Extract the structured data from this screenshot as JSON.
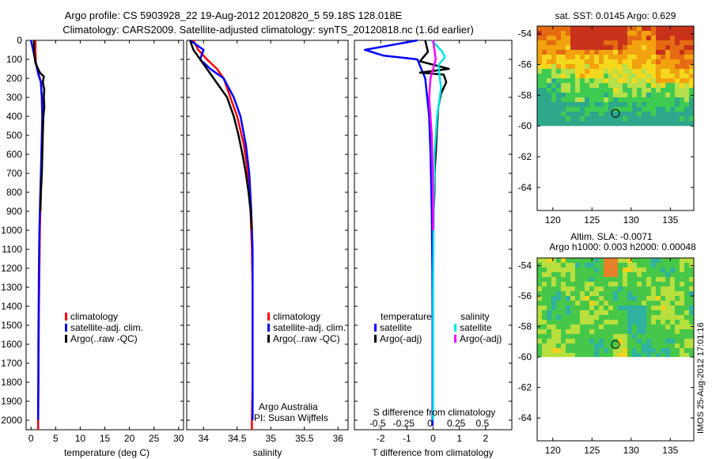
{
  "title": {
    "line1": "Argo profile: CS 5903928_22 19-Aug-2012 20120820_5 59.18S 128.018E",
    "line2": "Climatology: CARS2009. Satellite-adjusted climatology: synTS_20120818.nc (1.6d earlier)"
  },
  "colors": {
    "climatology": "#ff0000",
    "satellite": "#0000ff",
    "argo": "#000000",
    "sal_satellite": "#00e5e5",
    "sal_argo": "#ff00ff"
  },
  "chart_data": [
    {
      "type": "line",
      "name": "temperature_profile",
      "xlabel": "temperature (deg C)",
      "xlim": [
        -1,
        31
      ],
      "ylim": [
        2050,
        0
      ],
      "xticks": [
        0,
        5,
        10,
        15,
        20,
        25,
        30
      ],
      "yticks": [
        0,
        100,
        200,
        300,
        400,
        500,
        600,
        700,
        800,
        900,
        1000,
        1100,
        1200,
        1300,
        1400,
        1500,
        1600,
        1700,
        1800,
        1900,
        2000
      ],
      "legend": [
        "climatology",
        "satellite-adj. clim.",
        "Argo(..raw -QC)"
      ],
      "series": [
        {
          "name": "climatology",
          "color": "#ff0000",
          "x": [
            0.9,
            0.9,
            1.0,
            1.6,
            2.0,
            2.2,
            2.3,
            2.3,
            2.2,
            2.1,
            2.0,
            1.9,
            1.8,
            1.7,
            1.6,
            1.55,
            1.5,
            1.5,
            1.45,
            1.45
          ],
          "y": [
            0,
            60,
            120,
            180,
            220,
            300,
            400,
            500,
            600,
            700,
            800,
            900,
            1000,
            1200,
            1400,
            1600,
            1800,
            1900,
            2000,
            2050
          ]
        },
        {
          "name": "satellite-adj. clim.",
          "color": "#0000ff",
          "x": [
            0.0,
            0.5,
            1.0,
            1.5,
            2.0,
            2.2,
            2.3,
            2.2,
            2.1,
            2.0,
            1.9,
            1.8,
            1.7,
            1.6,
            1.55,
            1.5,
            1.5,
            1.45,
            1.45
          ],
          "y": [
            0,
            60,
            120,
            180,
            220,
            300,
            400,
            500,
            600,
            700,
            800,
            900,
            1000,
            1200,
            1400,
            1600,
            1800,
            1900,
            2000
          ]
        },
        {
          "name": "Argo(..raw -QC)",
          "color": "#000000",
          "x": [
            0.6,
            0.6,
            0.9,
            1.8,
            2.6,
            2.4,
            2.7,
            2.6,
            2.7,
            2.5,
            2.4,
            2.3,
            2.2,
            2.0,
            1.9
          ],
          "y": [
            0,
            60,
            120,
            170,
            190,
            220,
            260,
            300,
            350,
            400,
            500,
            600,
            700,
            800,
            900
          ]
        }
      ]
    },
    {
      "type": "line",
      "name": "salinity_profile",
      "xlabel": "salinity",
      "xlim": [
        33.75,
        36.15
      ],
      "ylim": [
        2050,
        0
      ],
      "xticks": [
        34,
        34.5,
        35,
        35.5,
        36
      ],
      "xticklabels": [
        "34",
        "34.5",
        "35",
        "35.5",
        "36"
      ],
      "legend": [
        "climatology",
        "satellite-adj. clim.",
        "Argo(..raw -QC)"
      ],
      "annotation": [
        "Argo Australia",
        "PI: Susan Wijffels"
      ],
      "series": [
        {
          "name": "climatology",
          "color": "#ff0000",
          "x": [
            33.85,
            33.92,
            34.05,
            34.2,
            34.3,
            34.4,
            34.5,
            34.6,
            34.66,
            34.7,
            34.72,
            34.73,
            34.73,
            34.73,
            34.72,
            34.72
          ],
          "y": [
            0,
            50,
            100,
            150,
            200,
            300,
            400,
            550,
            700,
            900,
            1100,
            1300,
            1500,
            1800,
            2000,
            2050
          ]
        },
        {
          "name": "satellite-adj. clim.",
          "color": "#0000ff",
          "x": [
            33.8,
            34.0,
            33.95,
            34.1,
            34.3,
            34.45,
            34.55,
            34.63,
            34.68,
            34.71,
            34.73,
            34.73,
            34.73,
            34.73,
            34.73
          ],
          "y": [
            0,
            50,
            100,
            150,
            200,
            300,
            400,
            550,
            700,
            900,
            1100,
            1300,
            1500,
            1800,
            2000
          ]
        },
        {
          "name": "Argo(..raw -QC)",
          "color": "#000000",
          "x": [
            33.8,
            33.85,
            33.95,
            34.05,
            34.15,
            34.25,
            34.35,
            34.45,
            34.52,
            34.58,
            34.63,
            34.67,
            34.7,
            34.72
          ],
          "y": [
            0,
            50,
            100,
            150,
            200,
            250,
            300,
            400,
            500,
            600,
            700,
            800,
            900,
            1000
          ]
        }
      ]
    },
    {
      "type": "line",
      "name": "difference_profile",
      "xlabel": "T difference from climatology",
      "xlabel_top": "S difference from climatology",
      "xlim": [
        -3,
        3
      ],
      "ylim": [
        2050,
        0
      ],
      "xticks": [
        -2,
        -1,
        0,
        1,
        2
      ],
      "xticklabels": [
        "-2",
        "-1",
        "0",
        "1",
        "2"
      ],
      "sticks": [
        -0.5,
        -0.25,
        0,
        0.25,
        0.5
      ],
      "sticklabels": [
        "-0.5",
        "-0.25",
        "0",
        "0.25",
        "0.5"
      ],
      "legend_groups": [
        {
          "heading": "temperature",
          "items": [
            "satellite",
            "Argo(-adj)"
          ]
        },
        {
          "heading": "salinity",
          "items": [
            "satellite",
            "Argo(-adj)"
          ]
        }
      ],
      "series": [
        {
          "name": "temperature satellite",
          "color": "#0000ff",
          "x": [
            -0.6,
            -2.6,
            -1.9,
            -0.6,
            -0.3,
            -0.15,
            -0.1,
            -0.05,
            -0.03,
            -0.02,
            -0.02,
            -0.02,
            -0.02
          ],
          "y": [
            0,
            50,
            80,
            100,
            200,
            400,
            600,
            900,
            1200,
            1500,
            1800,
            2000,
            2030
          ]
        },
        {
          "name": "temperature Argo(-adj)",
          "color": "#000000",
          "x": [
            -0.3,
            -0.2,
            -0.5,
            0.6,
            -0.5,
            0.4,
            0.5,
            0.3,
            0.2,
            0.15,
            0.1,
            0.05,
            0.05,
            0.02
          ],
          "y": [
            0,
            60,
            110,
            150,
            170,
            180,
            220,
            280,
            350,
            450,
            600,
            700,
            800,
            900
          ]
        },
        {
          "name": "salinity satellite",
          "color": "#00e5e5",
          "x": [
            -0.05,
            0.35,
            0.45,
            0.2,
            0.3,
            0.15,
            0.05,
            0.02,
            0.0,
            0.0
          ],
          "y": [
            0,
            60,
            90,
            130,
            250,
            400,
            600,
            900,
            1300,
            2000
          ]
        },
        {
          "name": "salinity Argo(-adj)",
          "color": "#ff00ff",
          "x": [
            0.0,
            0.1,
            -0.1,
            -0.15,
            -0.05,
            -0.02,
            0.0,
            0.0
          ],
          "y": [
            0,
            100,
            200,
            300,
            500,
            700,
            900,
            1000
          ]
        }
      ]
    },
    {
      "type": "heatmap",
      "name": "sst_map",
      "title": "sat. SST: 0.0145  Argo: 0.629",
      "xlim": [
        118,
        138
      ],
      "ylim": [
        -65.5,
        -53.5
      ],
      "xticks": [
        120,
        125,
        130,
        135
      ],
      "yticks": [
        -54,
        -56,
        -58,
        -60,
        -62,
        -64
      ],
      "marker": {
        "lon": 128.0,
        "lat": -59.18
      }
    },
    {
      "type": "heatmap",
      "name": "sla_map",
      "title": "Altim. SLA: -0.0071",
      "title2": "Argo h1000: 0.003  h2000: 0.00048",
      "xlim": [
        118,
        138
      ],
      "ylim": [
        -65.5,
        -53.5
      ],
      "xticks": [
        120,
        125,
        130,
        135
      ],
      "yticks": [
        -54,
        -56,
        -58,
        -60,
        -62,
        -64
      ],
      "marker": {
        "lon": 128.0,
        "lat": -59.18
      }
    }
  ],
  "footer": "IMOS 25-Aug-2012 17:01:16"
}
